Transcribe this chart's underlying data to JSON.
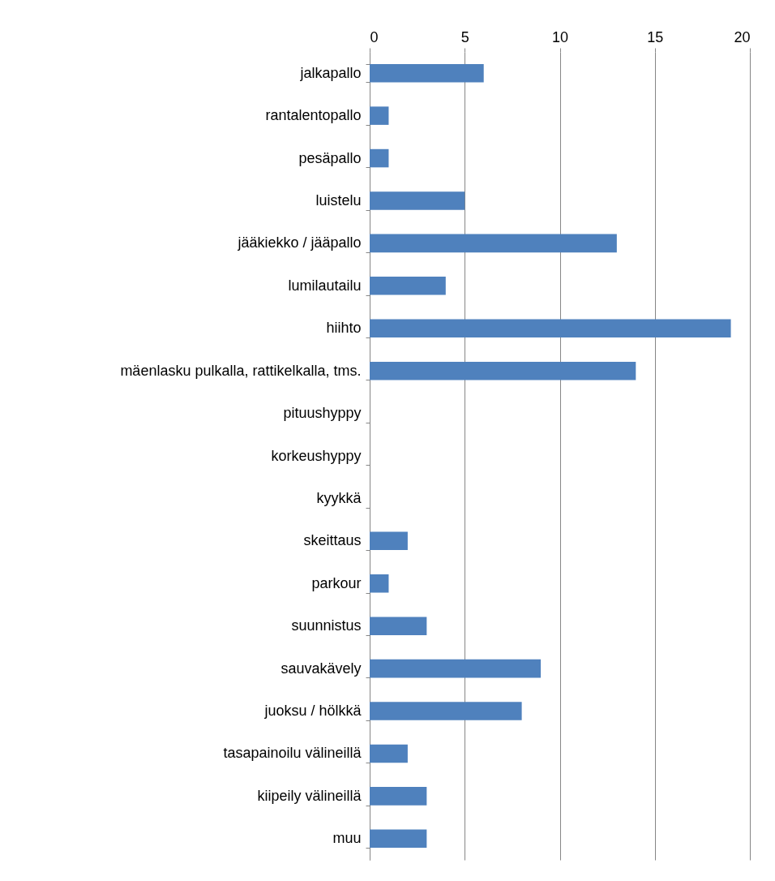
{
  "chart_data": {
    "type": "bar",
    "orientation": "horizontal",
    "categories": [
      "jalkapallo",
      "rantalentopallo",
      "pesäpallo",
      "luistelu",
      "jääkiekko / jääpallo",
      "lumilautailu",
      "hiihto",
      "mäenlasku pulkalla, rattikelkalla, tms.",
      "pituushyppy",
      "korkeushyppy",
      "kyykkä",
      "skeittaus",
      "parkour",
      "suunnistus",
      "sauvakävely",
      "juoksu / hölkkä",
      "tasapainoilu välineillä",
      "kiipeily välineillä",
      "muu"
    ],
    "values": [
      6,
      1,
      1,
      5,
      13,
      4,
      19,
      14,
      0,
      0,
      0,
      2,
      1,
      3,
      9,
      8,
      2,
      3,
      3
    ],
    "color": "#4f81bd",
    "xlim": [
      0,
      20
    ],
    "xticks": [
      0,
      5,
      10,
      15,
      20
    ],
    "grid": "x"
  }
}
